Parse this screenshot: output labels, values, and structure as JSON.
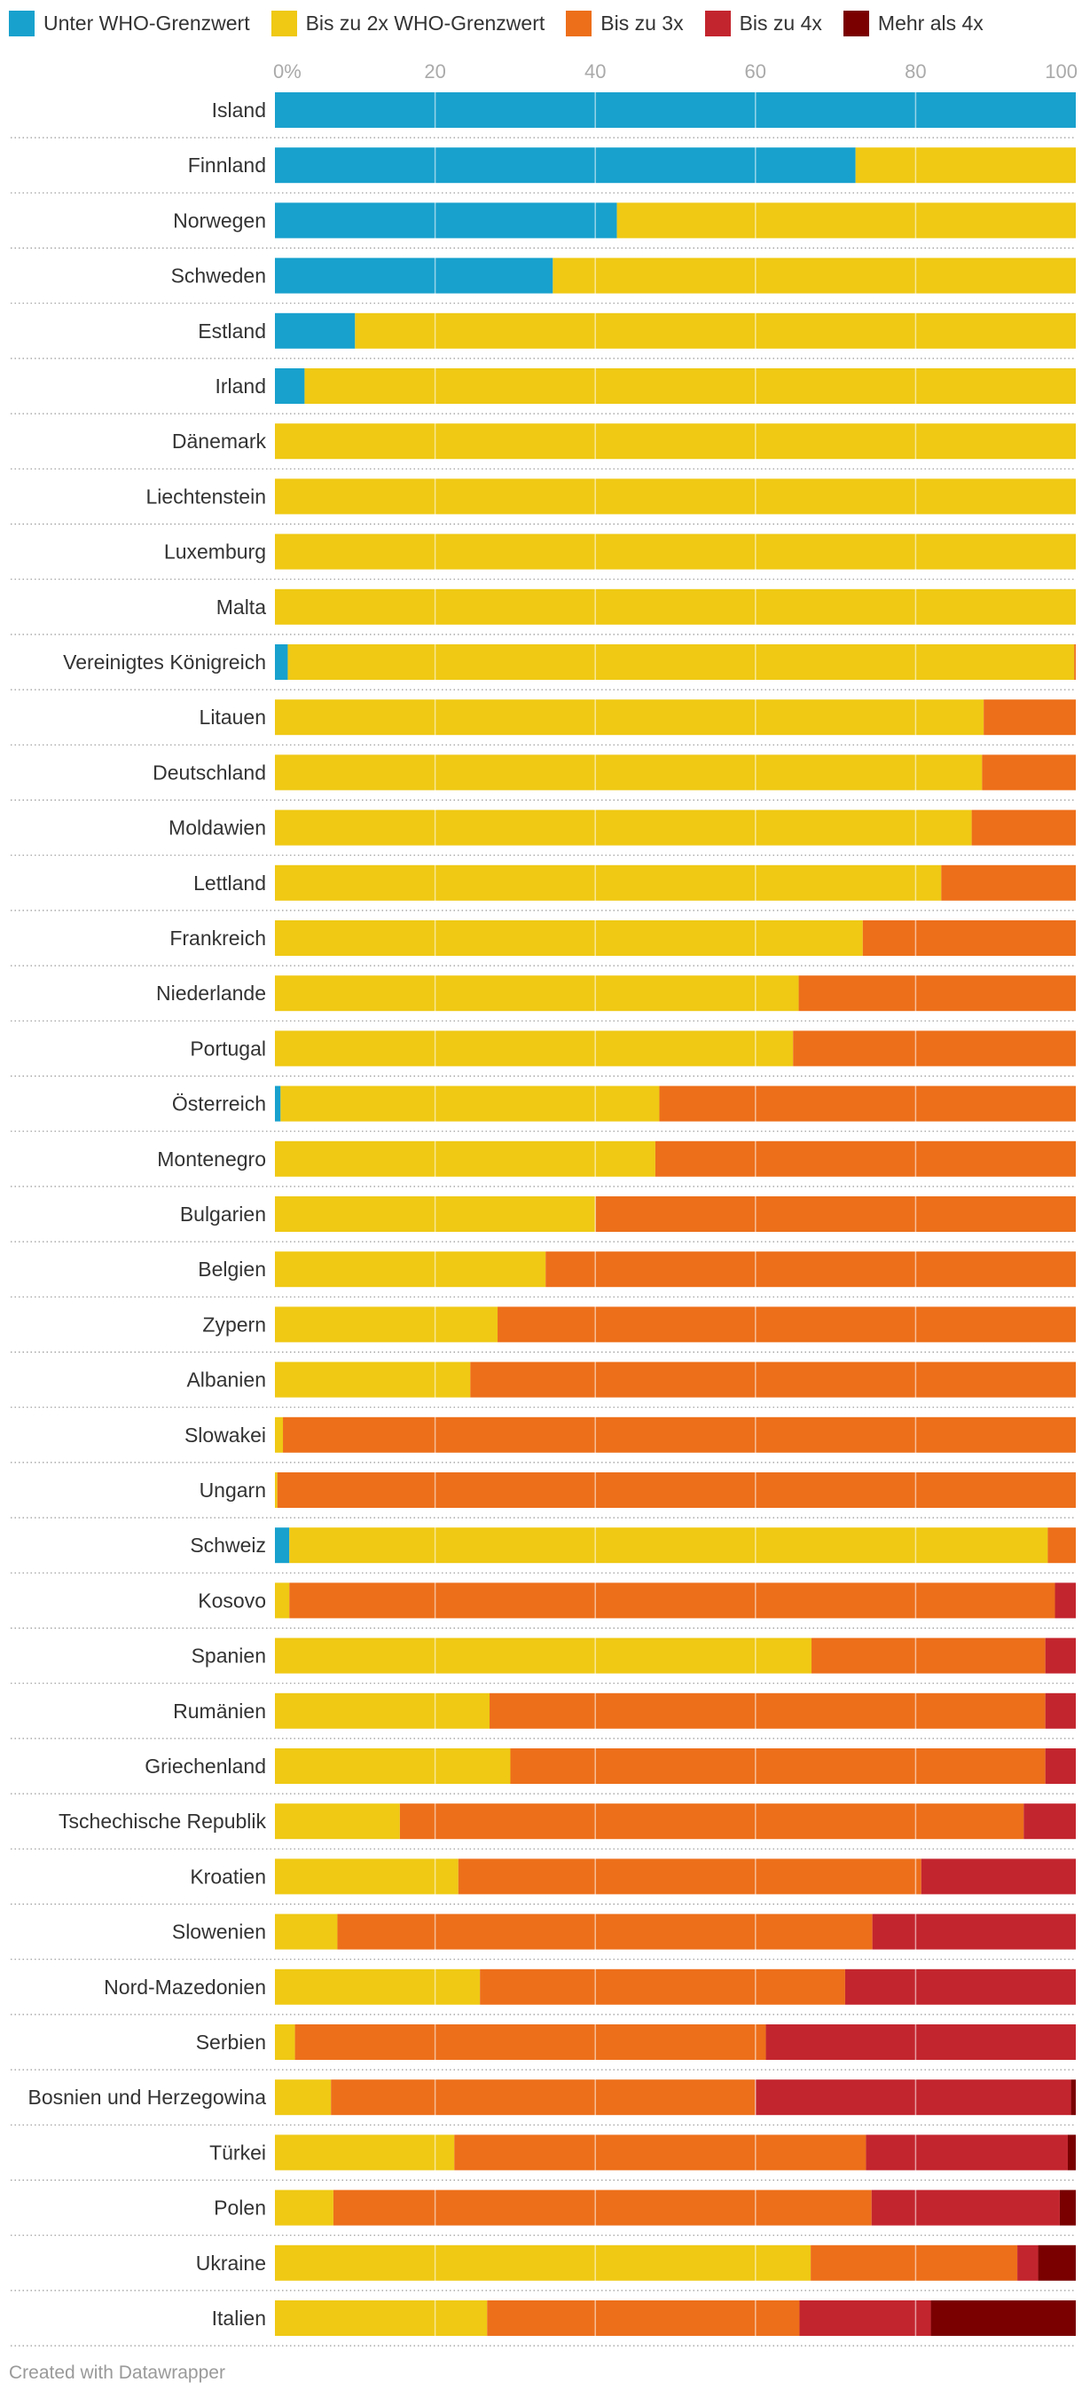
{
  "legend": [
    {
      "label": "Unter WHO-Grenzwert",
      "color": "#18a1cd"
    },
    {
      "label": "Bis zu 2x WHO-Grenzwert",
      "color": "#efc914"
    },
    {
      "label": "Bis zu 3x",
      "color": "#ed6f1a"
    },
    {
      "label": "Bis zu 4x",
      "color": "#c3252e"
    },
    {
      "label": "Mehr als 4x",
      "color": "#7a0000"
    }
  ],
  "footer": "Created with Datawrapper",
  "chart_data": {
    "type": "bar",
    "orientation": "horizontal",
    "stacked": true,
    "xlim": [
      0,
      100
    ],
    "xticks": [
      0,
      20,
      40,
      60,
      80,
      100
    ],
    "xtick_labels": [
      "0%",
      "20",
      "40",
      "60",
      "80",
      "100"
    ],
    "grid": true,
    "legend_position": "top-left",
    "categories": [
      "Island",
      "Finnland",
      "Norwegen",
      "Schweden",
      "Estland",
      "Irland",
      "Dänemark",
      "Liechtenstein",
      "Luxemburg",
      "Malta",
      "Vereinigtes Königreich",
      "Litauen",
      "Deutschland",
      "Moldawien",
      "Lettland",
      "Frankreich",
      "Niederlande",
      "Portugal",
      "Österreich",
      "Montenegro",
      "Bulgarien",
      "Belgien",
      "Zypern",
      "Albanien",
      "Slowakei",
      "Ungarn",
      "Schweiz",
      "Kosovo",
      "Spanien",
      "Rumänien",
      "Griechenland",
      "Tschechische Republik",
      "Kroatien",
      "Slowenien",
      "Nord-Mazedonien",
      "Serbien",
      "Bosnien und Herzegowina",
      "Türkei",
      "Polen",
      "Ukraine",
      "Italien"
    ],
    "series": [
      {
        "name": "Unter WHO-Grenzwert",
        "color": "#18a1cd",
        "values": [
          100,
          72.5,
          42.7,
          34.7,
          10,
          3.7,
          0,
          0,
          0,
          0,
          1.6,
          0,
          0,
          0,
          0,
          0,
          0,
          0,
          0.7,
          0,
          0,
          0,
          0,
          0,
          0,
          0,
          1.8,
          0,
          0,
          0,
          0,
          0,
          0,
          0,
          0,
          0,
          0,
          0,
          0,
          0,
          0
        ]
      },
      {
        "name": "Bis zu 2x WHO-Grenzwert",
        "color": "#efc914",
        "values": [
          0,
          27.5,
          57.3,
          65.3,
          90,
          96.3,
          100,
          100,
          100,
          100,
          98.2,
          88.5,
          88.3,
          87,
          83.2,
          73.4,
          65.4,
          64.7,
          47.3,
          47.5,
          40.0,
          33.8,
          27.8,
          24.4,
          1.0,
          0.3,
          94.7,
          1.8,
          67.0,
          26.8,
          29.4,
          15.6,
          22.9,
          7.8,
          25.6,
          2.5,
          7.0,
          22.4,
          7.3,
          66.9,
          26.5
        ]
      },
      {
        "name": "Bis zu 3x",
        "color": "#ed6f1a",
        "values": [
          0,
          0,
          0,
          0,
          0,
          0,
          0,
          0,
          0,
          0,
          0.2,
          11.5,
          11.7,
          13,
          16.8,
          26.6,
          34.6,
          35.3,
          52.0,
          52.5,
          60.0,
          66.2,
          72.2,
          75.6,
          99.0,
          99.7,
          3.5,
          95.6,
          29.2,
          69.4,
          66.8,
          77.9,
          57.8,
          66.8,
          45.6,
          58.8,
          53.0,
          51.4,
          67.2,
          25.8,
          39.0
        ]
      },
      {
        "name": "Bis zu 4x",
        "color": "#c3252e",
        "values": [
          0,
          0,
          0,
          0,
          0,
          0,
          0,
          0,
          0,
          0,
          0,
          0,
          0,
          0,
          0,
          0,
          0,
          0,
          0,
          0,
          0,
          0,
          0,
          0,
          0,
          0,
          0,
          2.6,
          3.8,
          3.8,
          3.8,
          6.5,
          19.3,
          25.4,
          28.8,
          38.7,
          39.4,
          25.2,
          23.5,
          2.6,
          16.4
        ]
      },
      {
        "name": "Mehr als 4x",
        "color": "#7a0000",
        "values": [
          0,
          0,
          0,
          0,
          0,
          0,
          0,
          0,
          0,
          0,
          0,
          0,
          0,
          0,
          0,
          0,
          0,
          0,
          0,
          0,
          0,
          0,
          0,
          0,
          0,
          0,
          0,
          0,
          0,
          0,
          0,
          0,
          0,
          0,
          0,
          0,
          0.6,
          1.0,
          2.0,
          4.7,
          18.1
        ]
      }
    ]
  }
}
